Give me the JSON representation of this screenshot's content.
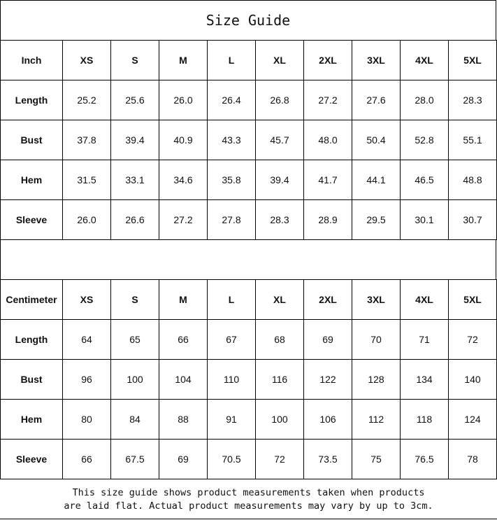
{
  "title": "Size Guide",
  "sizes": [
    "XS",
    "S",
    "M",
    "L",
    "XL",
    "2XL",
    "3XL",
    "4XL",
    "5XL"
  ],
  "inch": {
    "unit_label": "Inch",
    "rows": [
      {
        "label": "Length",
        "values": [
          "25.2",
          "25.6",
          "26.0",
          "26.4",
          "26.8",
          "27.2",
          "27.6",
          "28.0",
          "28.3"
        ]
      },
      {
        "label": "Bust",
        "values": [
          "37.8",
          "39.4",
          "40.9",
          "43.3",
          "45.7",
          "48.0",
          "50.4",
          "52.8",
          "55.1"
        ]
      },
      {
        "label": "Hem",
        "values": [
          "31.5",
          "33.1",
          "34.6",
          "35.8",
          "39.4",
          "41.7",
          "44.1",
          "46.5",
          "48.8"
        ]
      },
      {
        "label": "Sleeve",
        "values": [
          "26.0",
          "26.6",
          "27.2",
          "27.8",
          "28.3",
          "28.9",
          "29.5",
          "30.1",
          "30.7"
        ]
      }
    ]
  },
  "centimeter": {
    "unit_label": "Centimeter",
    "rows": [
      {
        "label": "Length",
        "values": [
          "64",
          "65",
          "66",
          "67",
          "68",
          "69",
          "70",
          "71",
          "72"
        ]
      },
      {
        "label": "Bust",
        "values": [
          "96",
          "100",
          "104",
          "110",
          "116",
          "122",
          "128",
          "134",
          "140"
        ]
      },
      {
        "label": "Hem",
        "values": [
          "80",
          "84",
          "88",
          "91",
          "100",
          "106",
          "112",
          "118",
          "124"
        ]
      },
      {
        "label": "Sleeve",
        "values": [
          "66",
          "67.5",
          "69",
          "70.5",
          "72",
          "73.5",
          "75",
          "76.5",
          "78"
        ]
      }
    ]
  },
  "note": {
    "line1": "This size guide shows product measurements taken when products",
    "line2": "are laid flat. Actual product measurements may vary by up to 3cm."
  }
}
